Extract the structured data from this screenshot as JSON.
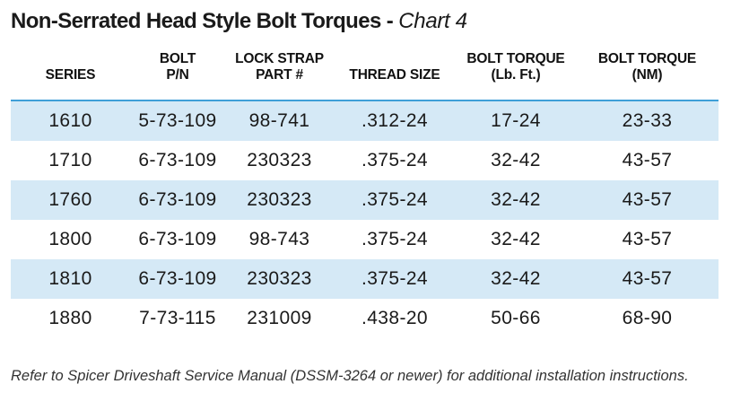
{
  "title": {
    "main": "Non-Serrated Head Style Bolt Torques",
    "separator": " - ",
    "sub": "Chart 4"
  },
  "table": {
    "headers": [
      {
        "line1": "",
        "line2": "SERIES"
      },
      {
        "line1": "BOLT",
        "line2": "P/N"
      },
      {
        "line1": "LOCK STRAP",
        "line2": "PART #"
      },
      {
        "line1": "",
        "line2": "THREAD SIZE"
      },
      {
        "line1": "BOLT TORQUE",
        "line2": "(Lb. Ft.)"
      },
      {
        "line1": "BOLT TORQUE",
        "line2": "(NM)"
      }
    ],
    "rows": [
      [
        "1610",
        "5-73-109",
        "98-741",
        ".312-24",
        "17-24",
        "23-33"
      ],
      [
        "1710",
        "6-73-109",
        "230323",
        ".375-24",
        "32-42",
        "43-57"
      ],
      [
        "1760",
        "6-73-109",
        "230323",
        ".375-24",
        "32-42",
        "43-57"
      ],
      [
        "1800",
        "6-73-109",
        "98-743",
        ".375-24",
        "32-42",
        "43-57"
      ],
      [
        "1810",
        "6-73-109",
        "230323",
        ".375-24",
        "32-42",
        "43-57"
      ],
      [
        "1880",
        "7-73-115",
        "231009",
        ".438-20",
        "50-66",
        "68-90"
      ]
    ]
  },
  "footnote": "Refer to Spicer Driveshaft Service Manual (DSSM-3264 or newer) for additional installation instructions.",
  "colors": {
    "header_rule": "#3f9fd8",
    "row_band": "#d5e9f6"
  }
}
